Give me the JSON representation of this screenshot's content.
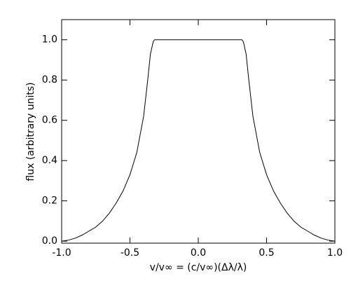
{
  "chart_data": {
    "type": "line",
    "xlabel": "v/v∞ = (c/v∞)(Δλ/λ)",
    "ylabel": "flux (arbitrary units)",
    "x": [
      -1,
      -0.95,
      -0.9,
      -0.85,
      -0.8,
      -0.75,
      -0.7,
      -0.65,
      -0.6,
      -0.55,
      -0.5,
      -0.45,
      -0.4,
      -0.37,
      -0.35,
      -0.33,
      -0.32,
      0.32,
      0.33,
      0.35,
      0.37,
      0.4,
      0.45,
      0.5,
      0.55,
      0.6,
      0.65,
      0.7,
      0.75,
      0.8,
      0.85,
      0.9,
      0.95,
      1
    ],
    "series": [
      {
        "color": "#000000",
        "values": [
          0,
          0.005,
          0.015,
          0.03,
          0.05,
          0.07,
          0.1,
          0.14,
          0.19,
          0.25,
          0.33,
          0.44,
          0.62,
          0.8,
          0.93,
          0.99,
          1.0,
          1.0,
          0.99,
          0.93,
          0.8,
          0.62,
          0.44,
          0.33,
          0.25,
          0.19,
          0.14,
          0.1,
          0.07,
          0.05,
          0.03,
          0.015,
          0.005,
          0
        ]
      }
    ],
    "xlim": [
      -1,
      1
    ],
    "ylim": [
      -0.01,
      1.1
    ],
    "xticks": [
      {
        "value": -1,
        "label": "-1.0"
      },
      -0.5,
      {
        "value": 0,
        "label": "0.0"
      },
      0.5,
      {
        "value": 1,
        "label": "1.0"
      }
    ],
    "yticks": [
      {
        "value": 0,
        "label": "0.0"
      },
      0.2,
      0.4,
      0.6,
      0.8,
      {
        "value": 1,
        "label": "1.0"
      }
    ]
  }
}
